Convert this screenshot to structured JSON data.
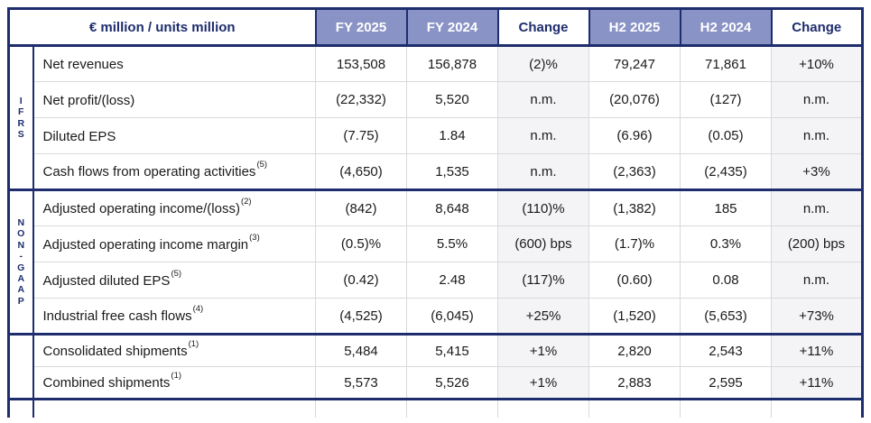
{
  "table": {
    "unit_header": "€ million / units million",
    "columns": [
      "FY 2025",
      "FY 2024",
      "Change",
      "H2 2025",
      "H2 2024",
      "Change"
    ],
    "groups": [
      {
        "id": "ifrs",
        "label": "I\nF\nR\nS"
      },
      {
        "id": "non-gaap",
        "label": "N\nO\nN\n-\nG\nA\nA\nP"
      },
      {
        "id": "shipments",
        "label": ""
      }
    ],
    "rows": [
      {
        "group": "ifrs",
        "label": "Net revenues",
        "sup": "",
        "values": [
          "153,508",
          "156,878",
          "(2)%",
          "79,247",
          "71,861",
          "+10%"
        ]
      },
      {
        "group": "ifrs",
        "label": "Net profit/(loss)",
        "sup": "",
        "values": [
          "(22,332)",
          "5,520",
          "n.m.",
          "(20,076)",
          "(127)",
          "n.m."
        ]
      },
      {
        "group": "ifrs",
        "label": "Diluted EPS",
        "sup": "",
        "values": [
          "(7.75)",
          "1.84",
          "n.m.",
          "(6.96)",
          "(0.05)",
          "n.m."
        ]
      },
      {
        "group": "ifrs",
        "label": "Cash flows from operating activities",
        "sup": "(5)",
        "values": [
          "(4,650)",
          "1,535",
          "n.m.",
          "(2,363)",
          "(2,435)",
          "+3%"
        ]
      },
      {
        "group": "non-gaap",
        "label": "Adjusted operating income/(loss)",
        "sup": "(2)",
        "values": [
          "(842)",
          "8,648",
          "(110)%",
          "(1,382)",
          "185",
          "n.m."
        ]
      },
      {
        "group": "non-gaap",
        "label": "Adjusted operating income margin",
        "sup": "(3)",
        "values": [
          "(0.5)%",
          "5.5%",
          "(600) bps",
          "(1.7)%",
          "0.3%",
          "(200) bps"
        ]
      },
      {
        "group": "non-gaap",
        "label": "Adjusted diluted EPS",
        "sup": "(5)",
        "values": [
          "(0.42)",
          "2.48",
          "(117)%",
          "(0.60)",
          "0.08",
          "n.m."
        ]
      },
      {
        "group": "non-gaap",
        "label": "Industrial free cash flows",
        "sup": "(4)",
        "values": [
          "(4,525)",
          "(6,045)",
          "+25%",
          "(1,520)",
          "(5,653)",
          "+73%"
        ]
      },
      {
        "group": "shipments",
        "label": "Consolidated shipments",
        "sup": "(1)",
        "values": [
          "5,484",
          "5,415",
          "+1%",
          "2,820",
          "2,543",
          "+11%"
        ]
      },
      {
        "group": "shipments",
        "label": "Combined shipments",
        "sup": "(1)",
        "values": [
          "5,573",
          "5,526",
          "+1%",
          "2,883",
          "2,595",
          "+11%"
        ]
      }
    ]
  },
  "colors": {
    "navy": "#1e2d6d",
    "header_purple": "#8a93c6",
    "change_column_bg": "#f4f4f6",
    "grid_line": "#d9d9d9"
  }
}
